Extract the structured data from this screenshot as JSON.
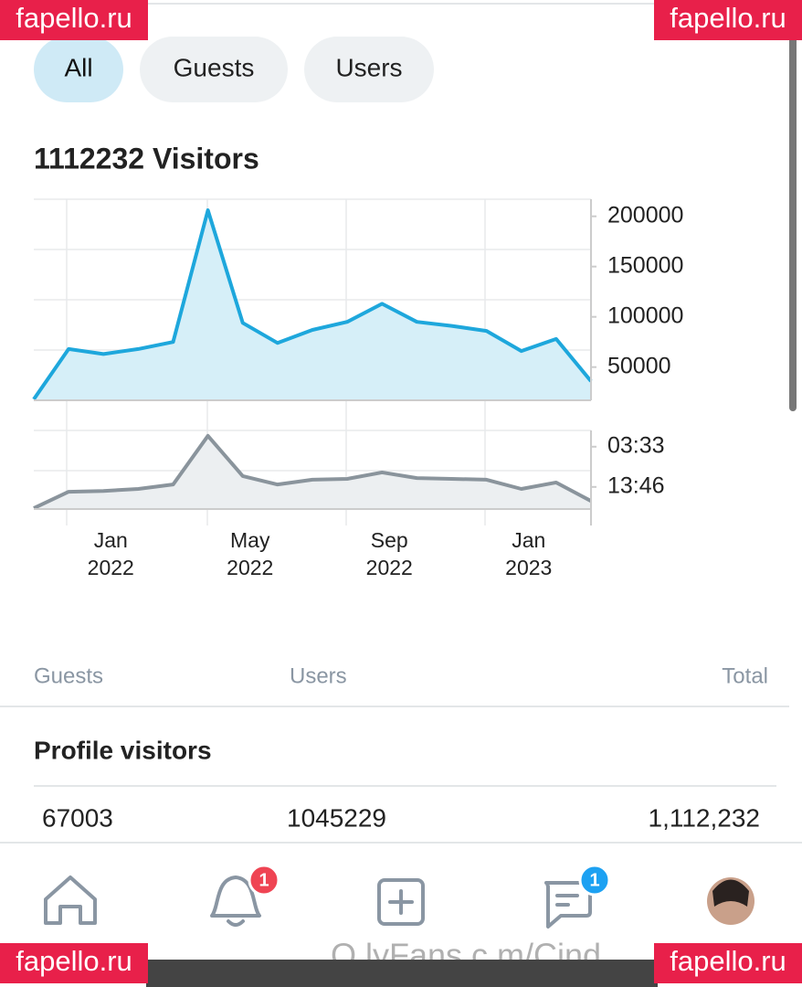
{
  "watermark": "fapello.ru",
  "footer_watermark": "O lyFans.c m/Cind",
  "tabs": [
    "All",
    "Guests",
    "Users"
  ],
  "visitors_title": "1112232 Visitors",
  "chart_data": [
    {
      "type": "area",
      "color": "#1ea7dc",
      "categories": [
        null,
        null,
        "Jan 2022",
        null,
        null,
        null,
        "May 2022",
        null,
        null,
        null,
        "Sep 2022",
        null,
        null,
        null,
        "Jan 2023",
        null,
        null
      ],
      "values": [
        18000,
        68000,
        63000,
        68000,
        75000,
        206000,
        94000,
        74000,
        87000,
        95000,
        113000,
        95000,
        91000,
        86000,
        66000,
        78000,
        36000
      ],
      "ylim": [
        17000,
        217000
      ],
      "yticks": [
        200000,
        150000,
        100000,
        50000
      ]
    },
    {
      "type": "area",
      "color": "#8a949c",
      "values": [
        0.02,
        0.43,
        0.45,
        0.5,
        0.61,
        1.82,
        0.82,
        0.61,
        0.73,
        0.75,
        0.91,
        0.77,
        0.75,
        0.73,
        0.5,
        0.66,
        0.2
      ],
      "ylim": [
        0,
        2
      ],
      "yticks": [
        {
          "value": 1.55,
          "label": "03:33"
        },
        {
          "value": 0.55,
          "label": "13:46"
        }
      ]
    }
  ],
  "table": {
    "headers": [
      "Guests",
      "Users",
      "Total"
    ],
    "row_title": "Profile visitors",
    "row": [
      "67003",
      "1045229",
      "1,112,232"
    ]
  },
  "nav": {
    "notifications_badge": "1",
    "messages_badge": "1"
  }
}
